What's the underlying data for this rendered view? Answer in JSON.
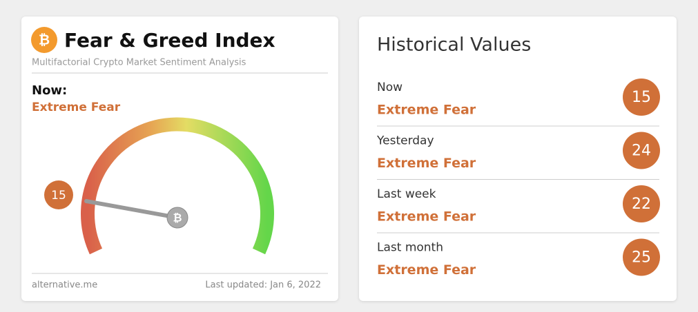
{
  "widget": {
    "title": "Fear & Greed Index",
    "subtitle": "Multifactorial Crypto Market Sentiment Analysis",
    "now_label": "Now:",
    "now_status": "Extreme Fear",
    "now_value": 15,
    "source": "alternative.me",
    "updated": "Last updated: Jan 6, 2022"
  },
  "history": {
    "title": "Historical Values",
    "rows": [
      {
        "label": "Now",
        "status": "Extreme Fear",
        "value": 15
      },
      {
        "label": "Yesterday",
        "status": "Extreme Fear",
        "value": 24
      },
      {
        "label": "Last week",
        "status": "Extreme Fear",
        "value": 22
      },
      {
        "label": "Last month",
        "status": "Extreme Fear",
        "value": 25
      }
    ]
  }
}
